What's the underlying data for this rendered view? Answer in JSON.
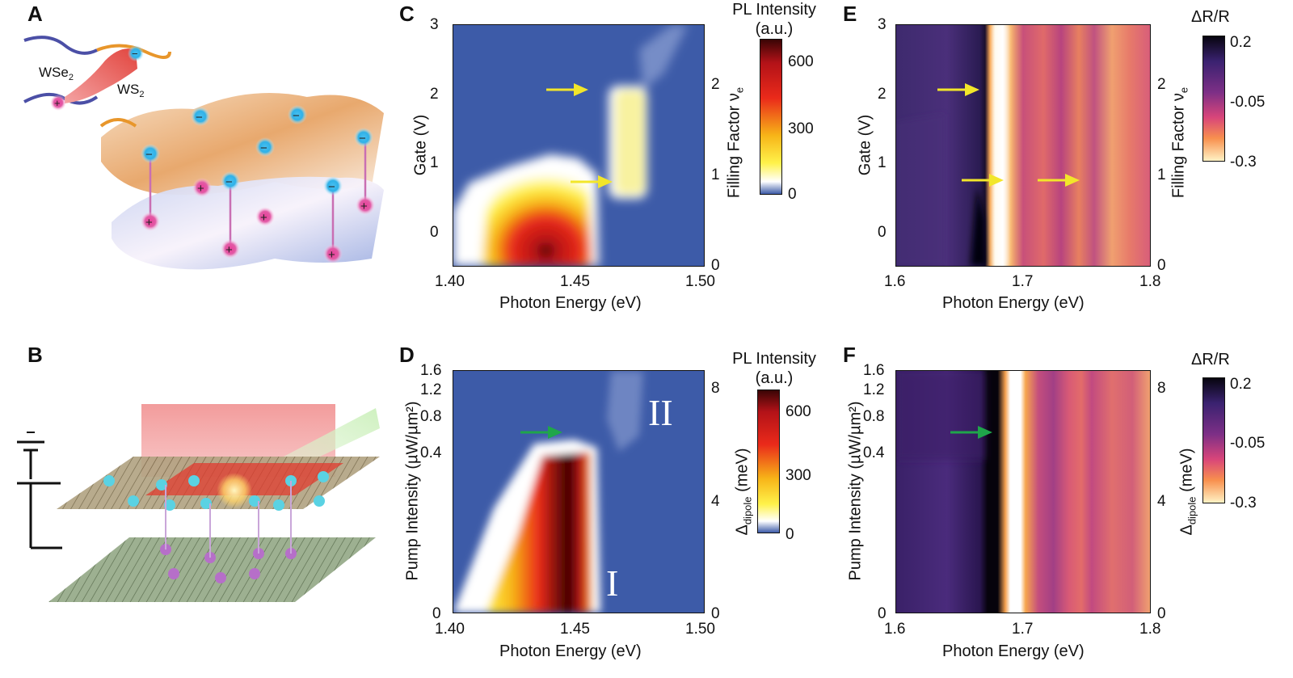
{
  "panels": {
    "A": {
      "letter": "A",
      "labels": {
        "wse2": "WSe",
        "wse2_sub": "2",
        "ws2": "WS",
        "ws2_sub": "2"
      }
    },
    "B": {
      "letter": "B"
    },
    "C": {
      "letter": "C",
      "xlabel": "Photon Energy (eV)",
      "ylabel": "Gate (V)",
      "y2label": "Filling Factor ν",
      "y2label_sub": "e",
      "xticks": [
        "1.40",
        "1.45",
        "1.50"
      ],
      "yticks": [
        "3",
        "2",
        "1",
        "0"
      ],
      "y2ticks": [
        "2",
        "1",
        "0"
      ],
      "cbar_title_1": "PL Intensity",
      "cbar_title_2": "(a.u.)",
      "cbar_ticks": [
        "600",
        "300",
        "0"
      ]
    },
    "D": {
      "letter": "D",
      "xlabel": "Photon Energy (eV)",
      "ylabel": "Pump Intensity (µW/µm²)",
      "y2label": "Δ",
      "y2label_sub": "dipole",
      "y2label_tail": " (meV)",
      "xticks": [
        "1.40",
        "1.45",
        "1.50"
      ],
      "yticks": [
        "1.6",
        "1.2",
        "0.8",
        "0.4",
        "0"
      ],
      "y2ticks": [
        "8",
        "4",
        "0"
      ],
      "cbar_title_1": "PL Intensity",
      "cbar_title_2": "(a.u.)",
      "cbar_ticks": [
        "600",
        "300",
        "0"
      ],
      "region_I": "I",
      "region_II": "II"
    },
    "E": {
      "letter": "E",
      "xlabel": "Photon Energy (eV)",
      "ylabel": "Gate (V)",
      "y2label": "Filling Factor ν",
      "y2label_sub": "e",
      "xticks": [
        "1.6",
        "1.7",
        "1.8"
      ],
      "yticks": [
        "3",
        "2",
        "1",
        "0"
      ],
      "y2ticks": [
        "2",
        "1",
        "0"
      ],
      "cbar_title": "ΔR/R",
      "cbar_ticks": [
        "0.2",
        "-0.05",
        "-0.3"
      ]
    },
    "F": {
      "letter": "F",
      "xlabel": "Photon Energy (eV)",
      "ylabel": "Pump Intensity (µW/µm²)",
      "y2label": "Δ",
      "y2label_sub": "dipole",
      "y2label_tail": " (meV)",
      "xticks": [
        "1.6",
        "1.7",
        "1.8"
      ],
      "yticks": [
        "1.6",
        "1.2",
        "0.8",
        "0.4",
        "0"
      ],
      "y2ticks": [
        "8",
        "4",
        "0"
      ],
      "cbar_title": "ΔR/R",
      "cbar_ticks": [
        "0.2",
        "-0.05",
        "-0.3"
      ]
    }
  },
  "colors": {
    "pl_background": "#3d5ba8",
    "arrow_yellow": "#f2e62a",
    "arrow_green": "#1fa64a"
  },
  "charts": {
    "chart_data": [
      {
        "type": "heatmap",
        "panel": "C",
        "xlim": [
          1.4,
          1.5
        ],
        "ylim": [
          -0.5,
          3
        ],
        "y2lim": [
          0,
          2.5
        ]
      },
      {
        "type": "heatmap",
        "panel": "D",
        "xlim": [
          1.4,
          1.5
        ],
        "ylim": [
          0,
          1.6
        ],
        "y2lim": [
          0,
          8
        ]
      },
      {
        "type": "heatmap",
        "panel": "E",
        "xlim": [
          1.6,
          1.8
        ],
        "ylim": [
          -0.5,
          3
        ],
        "y2lim": [
          0,
          2.5
        ]
      },
      {
        "type": "heatmap",
        "panel": "F",
        "xlim": [
          1.6,
          1.8
        ],
        "ylim": [
          0,
          1.6
        ],
        "y2lim": [
          0,
          8
        ]
      }
    ]
  }
}
